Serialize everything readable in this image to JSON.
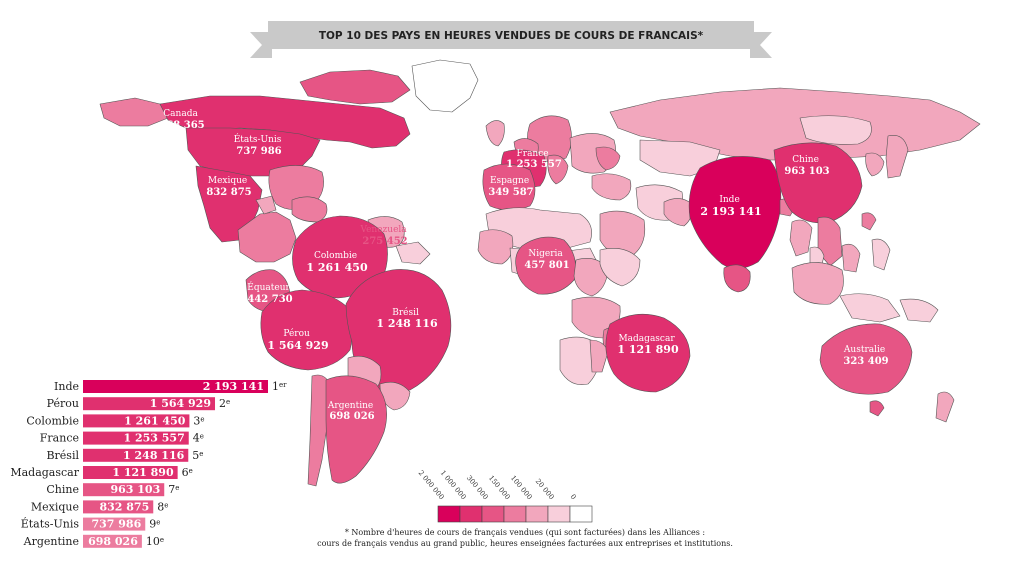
{
  "title": "TOP 10 DES PAYS EN HEURES VENDUES DE COURS DE FRANCAIS*",
  "colors": {
    "banner": "#c9c9c9",
    "level1": "#d9005b",
    "level2": "#e0306f",
    "level3": "#e65585",
    "level4": "#ec7c9f",
    "level5": "#f2a7bd",
    "level6": "#f8cfdb",
    "level7": "#ffffff",
    "border": "#444444"
  },
  "map": {
    "labels": [
      {
        "id": "canada",
        "country": "Canada",
        "value": "468 365"
      },
      {
        "id": "usa",
        "country": "États-Unis",
        "value": "737 986"
      },
      {
        "id": "mexique",
        "country": "Mexique",
        "value": "832 875"
      },
      {
        "id": "venezuela",
        "country": "Venezuela",
        "value": "275 452"
      },
      {
        "id": "colombie",
        "country": "Colombie",
        "value": "1 261 450"
      },
      {
        "id": "equateur",
        "country": "Équateur",
        "value": "442 730"
      },
      {
        "id": "perou",
        "country": "Pérou",
        "value": "1 564 929"
      },
      {
        "id": "bresil",
        "country": "Brésil",
        "value": "1 248 116"
      },
      {
        "id": "argentine",
        "country": "Argentine",
        "value": "698 026"
      },
      {
        "id": "france",
        "country": "France",
        "value": "1 253 557"
      },
      {
        "id": "espagne",
        "country": "Espagne",
        "value": "349 587"
      },
      {
        "id": "nigeria",
        "country": "Nigeria",
        "value": "457 801"
      },
      {
        "id": "madagascar",
        "country": "Madagascar",
        "value": "1 121 890"
      },
      {
        "id": "inde",
        "country": "Inde",
        "value": "2 193 141"
      },
      {
        "id": "chine",
        "country": "Chine",
        "value": "963 103"
      },
      {
        "id": "australie",
        "country": "Australie",
        "value": "323 409"
      }
    ]
  },
  "ranking": [
    {
      "country": "Inde",
      "value": "2 193 141",
      "hours": 2193141,
      "rank": "1",
      "suffix": "er"
    },
    {
      "country": "Pérou",
      "value": "1 564 929",
      "hours": 1564929,
      "rank": "2",
      "suffix": "e"
    },
    {
      "country": "Colombie",
      "value": "1 261 450",
      "hours": 1261450,
      "rank": "3",
      "suffix": "e"
    },
    {
      "country": "France",
      "value": "1 253 557",
      "hours": 1253557,
      "rank": "4",
      "suffix": "e"
    },
    {
      "country": "Brésil",
      "value": "1 248 116",
      "hours": 1248116,
      "rank": "5",
      "suffix": "e"
    },
    {
      "country": "Madagascar",
      "value": "1 121 890",
      "hours": 1121890,
      "rank": "6",
      "suffix": "e"
    },
    {
      "country": "Chine",
      "value": "963 103",
      "hours": 963103,
      "rank": "7",
      "suffix": "e"
    },
    {
      "country": "Mexique",
      "value": "832 875",
      "hours": 832875,
      "rank": "8",
      "suffix": "e"
    },
    {
      "country": "États-Unis",
      "value": "737 986",
      "hours": 737986,
      "rank": "9",
      "suffix": "e"
    },
    {
      "country": "Argentine",
      "value": "698 026",
      "hours": 698026,
      "rank": "10",
      "suffix": "e"
    }
  ],
  "legend": {
    "ticks": [
      "2 000 000",
      "1 000 000",
      "300 000",
      "150 000",
      "100 000",
      "20 000",
      "0"
    ]
  },
  "footnote": {
    "line1": "* Nombre d'heures de cours de français vendues (qui sont facturées) dans les Alliances :",
    "line2": "cours de français vendus au grand public, heures enseignées facturées aux entreprises et institutions."
  }
}
